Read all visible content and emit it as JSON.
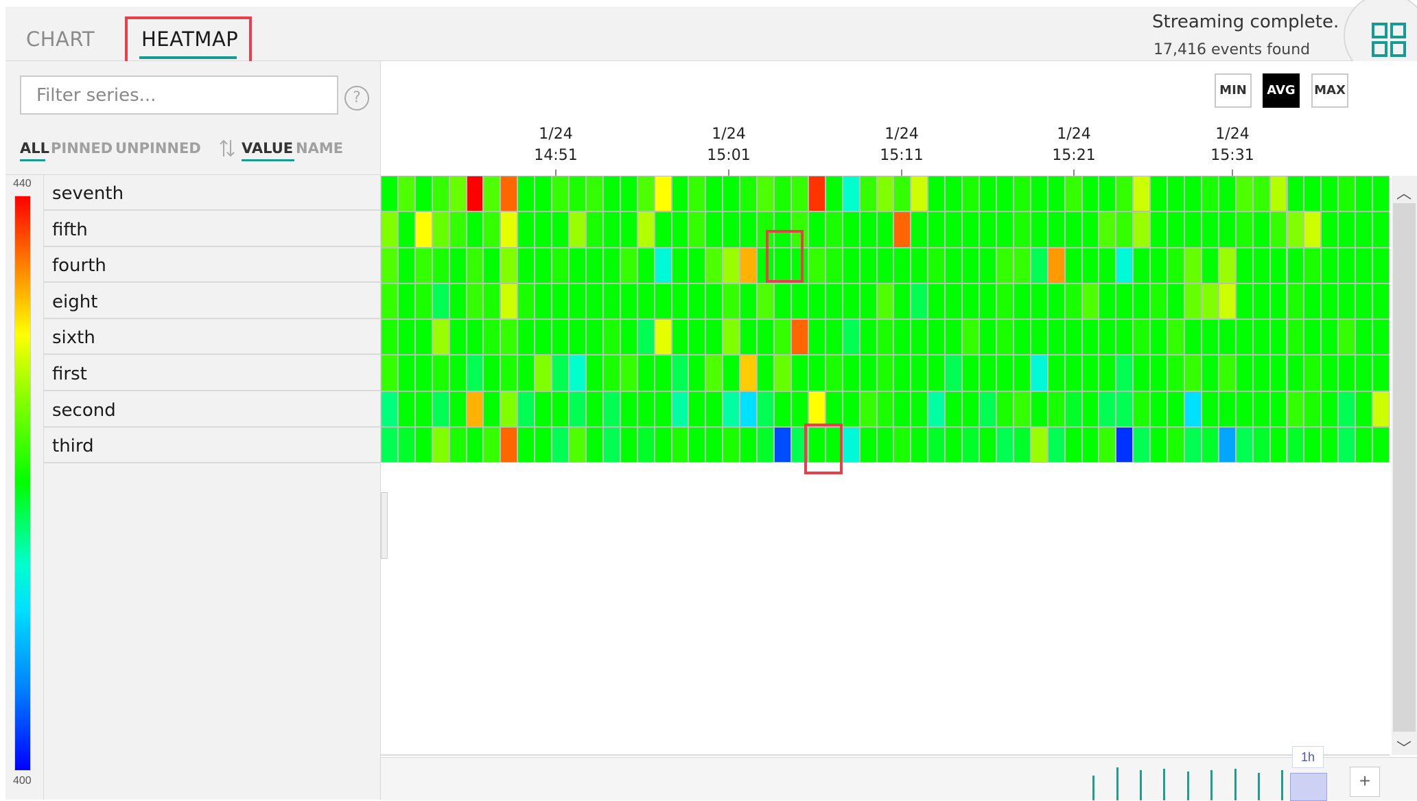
{
  "tabs": {
    "chart": "CHART",
    "heatmap": "HEATMAP"
  },
  "status": {
    "text": "Streaming complete.",
    "events": "17,416 events found"
  },
  "filter": {
    "placeholder": "Filter series...",
    "help": "?",
    "all": "ALL",
    "pinned": "PINNED",
    "unpinned": "UNPINNED",
    "sort_value": "VALUE",
    "sort_name": "NAME"
  },
  "legend": {
    "max": "440",
    "min": "400"
  },
  "series": [
    "seventh",
    "fifth",
    "fourth",
    "eight",
    "sixth",
    "first",
    "second",
    "third"
  ],
  "aggregation": {
    "min": "MIN",
    "avg": "AVG",
    "max": "MAX",
    "selected": "AVG"
  },
  "time_axis": [
    {
      "date": "1/24",
      "time": "14:51"
    },
    {
      "date": "1/24",
      "time": "15:01"
    },
    {
      "date": "1/24",
      "time": "15:11"
    },
    {
      "date": "1/24",
      "time": "15:21"
    },
    {
      "date": "1/24",
      "time": "15:31"
    }
  ],
  "brush": {
    "label": "1h",
    "plus": "+"
  },
  "scroll": {
    "up": "︿",
    "down": "﹀"
  },
  "chart_data": {
    "type": "heatmap",
    "title": "",
    "rows": [
      "seventh",
      "fifth",
      "fourth",
      "eight",
      "sixth",
      "first",
      "second",
      "third"
    ],
    "columns": 59,
    "value_range": [
      400,
      440
    ],
    "colormap": [
      "#0000ff",
      "#0080ff",
      "#00e0ff",
      "#00ffcc",
      "#00ff00",
      "#80ff00",
      "#ffff00",
      "#ff8000",
      "#ff0000"
    ],
    "values": [
      [
        420,
        423,
        420,
        422,
        424,
        440,
        423,
        436,
        420,
        420,
        422,
        421,
        422,
        420,
        420,
        423,
        430,
        420,
        422,
        420,
        420,
        421,
        423,
        421,
        422,
        438,
        420,
        415,
        422,
        425,
        422,
        428,
        420,
        420,
        421,
        420,
        420,
        421,
        420,
        420,
        422,
        420,
        420,
        422,
        428,
        420,
        420,
        420,
        421,
        420,
        423,
        422,
        427,
        420,
        420,
        420,
        421,
        420,
        420
      ],
      [
        425,
        420,
        430,
        424,
        422,
        420,
        422,
        429,
        420,
        420,
        420,
        426,
        421,
        420,
        420,
        427,
        420,
        420,
        422,
        420,
        420,
        420,
        421,
        420,
        422,
        420,
        421,
        420,
        420,
        420,
        436,
        420,
        420,
        420,
        420,
        420,
        420,
        421,
        420,
        420,
        420,
        420,
        423,
        422,
        426,
        420,
        420,
        420,
        420,
        420,
        421,
        420,
        422,
        425,
        428,
        420,
        420,
        420,
        420
      ],
      [
        423,
        420,
        422,
        421,
        420,
        422,
        420,
        425,
        420,
        420,
        421,
        420,
        420,
        420,
        422,
        420,
        414,
        420,
        420,
        423,
        426,
        433,
        420,
        420,
        420,
        422,
        421,
        420,
        420,
        420,
        420,
        420,
        421,
        420,
        420,
        420,
        422,
        422,
        418,
        434,
        420,
        420,
        420,
        414,
        420,
        420,
        421,
        424,
        420,
        426,
        420,
        420,
        420,
        420,
        421,
        420,
        420,
        420,
        420
      ],
      [
        422,
        420,
        421,
        418,
        420,
        422,
        421,
        428,
        421,
        420,
        420,
        420,
        420,
        420,
        420,
        420,
        420,
        420,
        420,
        420,
        422,
        420,
        423,
        420,
        420,
        420,
        420,
        420,
        420,
        423,
        420,
        418,
        420,
        420,
        420,
        420,
        421,
        420,
        420,
        420,
        421,
        423,
        420,
        420,
        420,
        421,
        420,
        424,
        425,
        428,
        420,
        420,
        420,
        421,
        420,
        420,
        420,
        420,
        420
      ],
      [
        421,
        420,
        420,
        426,
        420,
        420,
        421,
        422,
        420,
        420,
        420,
        420,
        420,
        421,
        420,
        418,
        429,
        420,
        420,
        420,
        425,
        420,
        420,
        422,
        436,
        420,
        420,
        418,
        420,
        421,
        420,
        420,
        420,
        420,
        422,
        420,
        421,
        420,
        420,
        420,
        420,
        420,
        420,
        420,
        421,
        420,
        422,
        420,
        420,
        420,
        420,
        420,
        420,
        421,
        420,
        420,
        422,
        420,
        420
      ],
      [
        422,
        420,
        420,
        421,
        420,
        418,
        420,
        421,
        420,
        425,
        418,
        415,
        420,
        421,
        422,
        420,
        420,
        418,
        420,
        423,
        420,
        432,
        420,
        424,
        420,
        420,
        421,
        420,
        420,
        421,
        420,
        420,
        420,
        418,
        420,
        420,
        420,
        420,
        414,
        420,
        420,
        420,
        420,
        418,
        420,
        420,
        421,
        422,
        420,
        422,
        420,
        420,
        420,
        420,
        421,
        420,
        420,
        420,
        420
      ],
      [
        417,
        420,
        420,
        418,
        420,
        433,
        420,
        425,
        418,
        420,
        420,
        418,
        420,
        418,
        420,
        420,
        420,
        416,
        420,
        420,
        416,
        410,
        418,
        420,
        420,
        430,
        420,
        420,
        422,
        421,
        420,
        420,
        416,
        420,
        420,
        418,
        421,
        422,
        420,
        421,
        419,
        420,
        418,
        418,
        421,
        420,
        420,
        410,
        420,
        420,
        420,
        420,
        420,
        422,
        421,
        420,
        418,
        420,
        428
      ],
      [
        418,
        419,
        420,
        425,
        421,
        420,
        422,
        436,
        420,
        420,
        418,
        423,
        420,
        418,
        420,
        419,
        420,
        421,
        420,
        420,
        421,
        420,
        419,
        403,
        418,
        420,
        420,
        414,
        420,
        420,
        421,
        420,
        419,
        420,
        419,
        420,
        418,
        419,
        426,
        418,
        420,
        420,
        422,
        402,
        418,
        420,
        421,
        418,
        419,
        407,
        418,
        419,
        420,
        419,
        420,
        420,
        418,
        420,
        420
      ]
    ]
  }
}
